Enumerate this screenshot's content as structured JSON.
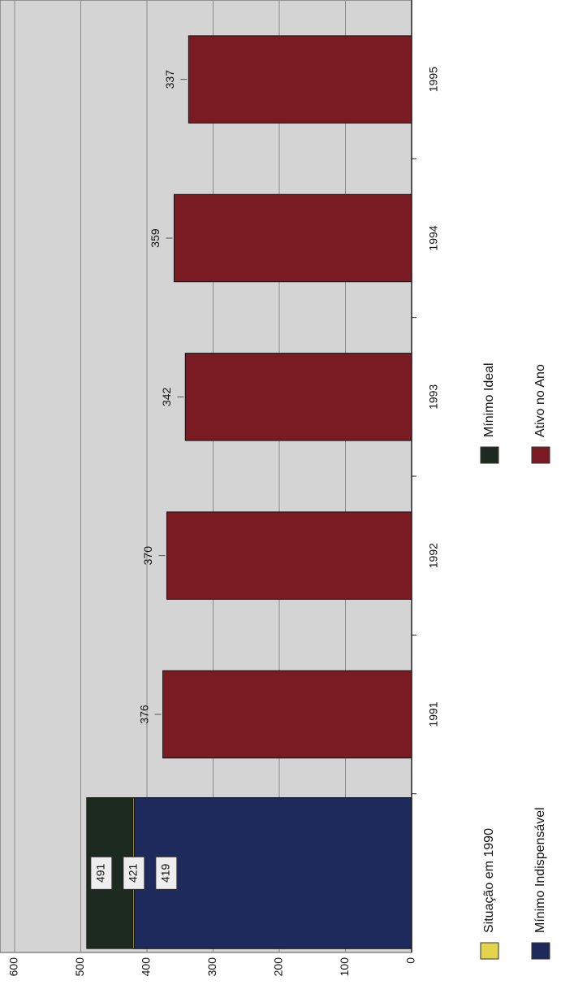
{
  "chart_data": {
    "type": "bar",
    "categories": [
      null,
      "1991",
      "1992",
      "1993",
      "1994",
      "1995"
    ],
    "series": [
      {
        "name": "Situação em 1990",
        "color": "#e3d44c",
        "values": [
          421,
          null,
          null,
          null,
          null,
          null
        ]
      },
      {
        "name": "Mínimo Indispensável",
        "color": "#1f2a5c",
        "values": [
          419,
          null,
          null,
          null,
          null,
          null
        ]
      },
      {
        "name": "Mínimo Ideal",
        "color": "#1d2a1f",
        "values": [
          491,
          null,
          null,
          null,
          null,
          null
        ]
      },
      {
        "name": "Ativo no Ano",
        "color": "#7a1b24",
        "values": [
          null,
          376,
          370,
          342,
          359,
          337
        ]
      }
    ],
    "ylim": [
      0,
      600
    ],
    "yticks": [
      0,
      100,
      200,
      300,
      400,
      500,
      600
    ],
    "grid": true,
    "legend": "bottom"
  }
}
